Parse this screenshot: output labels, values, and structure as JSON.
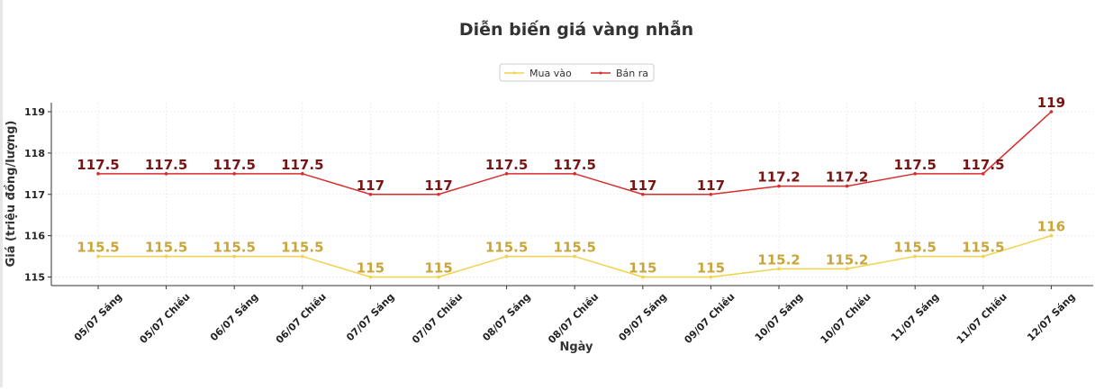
{
  "chart_data": {
    "type": "line",
    "title": "Diễn biến giá vàng nhẫn",
    "xlabel": "Ngày",
    "ylabel": "Giá (triệu đồng/lượng)",
    "categories": [
      "05/07 Sáng",
      "05/07 Chiều",
      "06/07 Sáng",
      "06/07 Chiều",
      "07/07 Sáng",
      "07/07 Chiều",
      "08/07 Sáng",
      "08/07 Chiều",
      "09/07 Sáng",
      "09/07 Chiều",
      "10/07 Sáng",
      "10/07 Chiều",
      "11/07 Sáng",
      "11/07 Chiều",
      "12/07 Sáng"
    ],
    "series": [
      {
        "name": "Mua vào",
        "color": "#f2d24b",
        "label_color": "#c9a63c",
        "values": [
          115.5,
          115.5,
          115.5,
          115.5,
          115,
          115,
          115.5,
          115.5,
          115,
          115,
          115.2,
          115.2,
          115.5,
          115.5,
          116
        ],
        "labels": [
          "115.5",
          "115.5",
          "115.5",
          "115.5",
          "115",
          "115",
          "115.5",
          "115.5",
          "115",
          "115",
          "115.2",
          "115.2",
          "115.5",
          "115.5",
          "116"
        ]
      },
      {
        "name": "Bán ra",
        "color": "#d62d2d",
        "label_color": "#7a1515",
        "values": [
          117.5,
          117.5,
          117.5,
          117.5,
          117,
          117,
          117.5,
          117.5,
          117,
          117,
          117.2,
          117.2,
          117.5,
          117.5,
          119
        ],
        "labels": [
          "117.5",
          "117.5",
          "117.5",
          "117.5",
          "117",
          "117",
          "117.5",
          "117.5",
          "117",
          "117",
          "117.2",
          "117.2",
          "117.5",
          "117.5",
          "119"
        ]
      }
    ],
    "yticks": [
      115,
      116,
      117,
      118,
      119
    ],
    "ylim": [
      114.8,
      119.2
    ],
    "grid": true,
    "legend": "top-center"
  }
}
